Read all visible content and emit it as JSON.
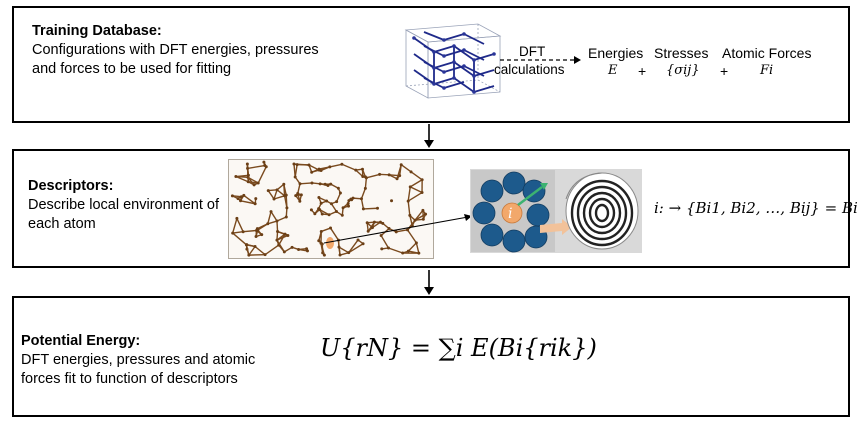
{
  "panels": [
    {
      "title": "Training Database:",
      "body": "Configurations with DFT energies, pressures and forces to be used for fitting"
    },
    {
      "title": "Descriptors:",
      "body": "Describe local environment of each atom"
    },
    {
      "title": "Potential Energy:",
      "body": "DFT energies, pressures and atomic forces fit to function of descriptors"
    }
  ],
  "dft": {
    "arrow_label_1": "DFT",
    "arrow_label_2": "calculations",
    "energies_label": "Energies",
    "energies_symbol": "E",
    "plus1": "+",
    "stresses_label": "Stresses",
    "stresses_symbol": "{σij}",
    "plus2": "+",
    "forces_label": "Atomic Forces",
    "forces_symbol": "Fi"
  },
  "descriptor": {
    "atom_label": "i",
    "mapping": "i: → {Bi1, Bi2, …, Bij} = Bi"
  },
  "equation": {
    "text": "U{rN} = ∑i E(Bi{rik})"
  },
  "colors": {
    "border": "#000000",
    "crystal_atom": "#1f2a8a",
    "amorphous": "#7a4a1e",
    "sphere_blue": "#1d5a8c",
    "highlight_orange": "#f2a86b",
    "green_arrow": "#3cb371"
  }
}
